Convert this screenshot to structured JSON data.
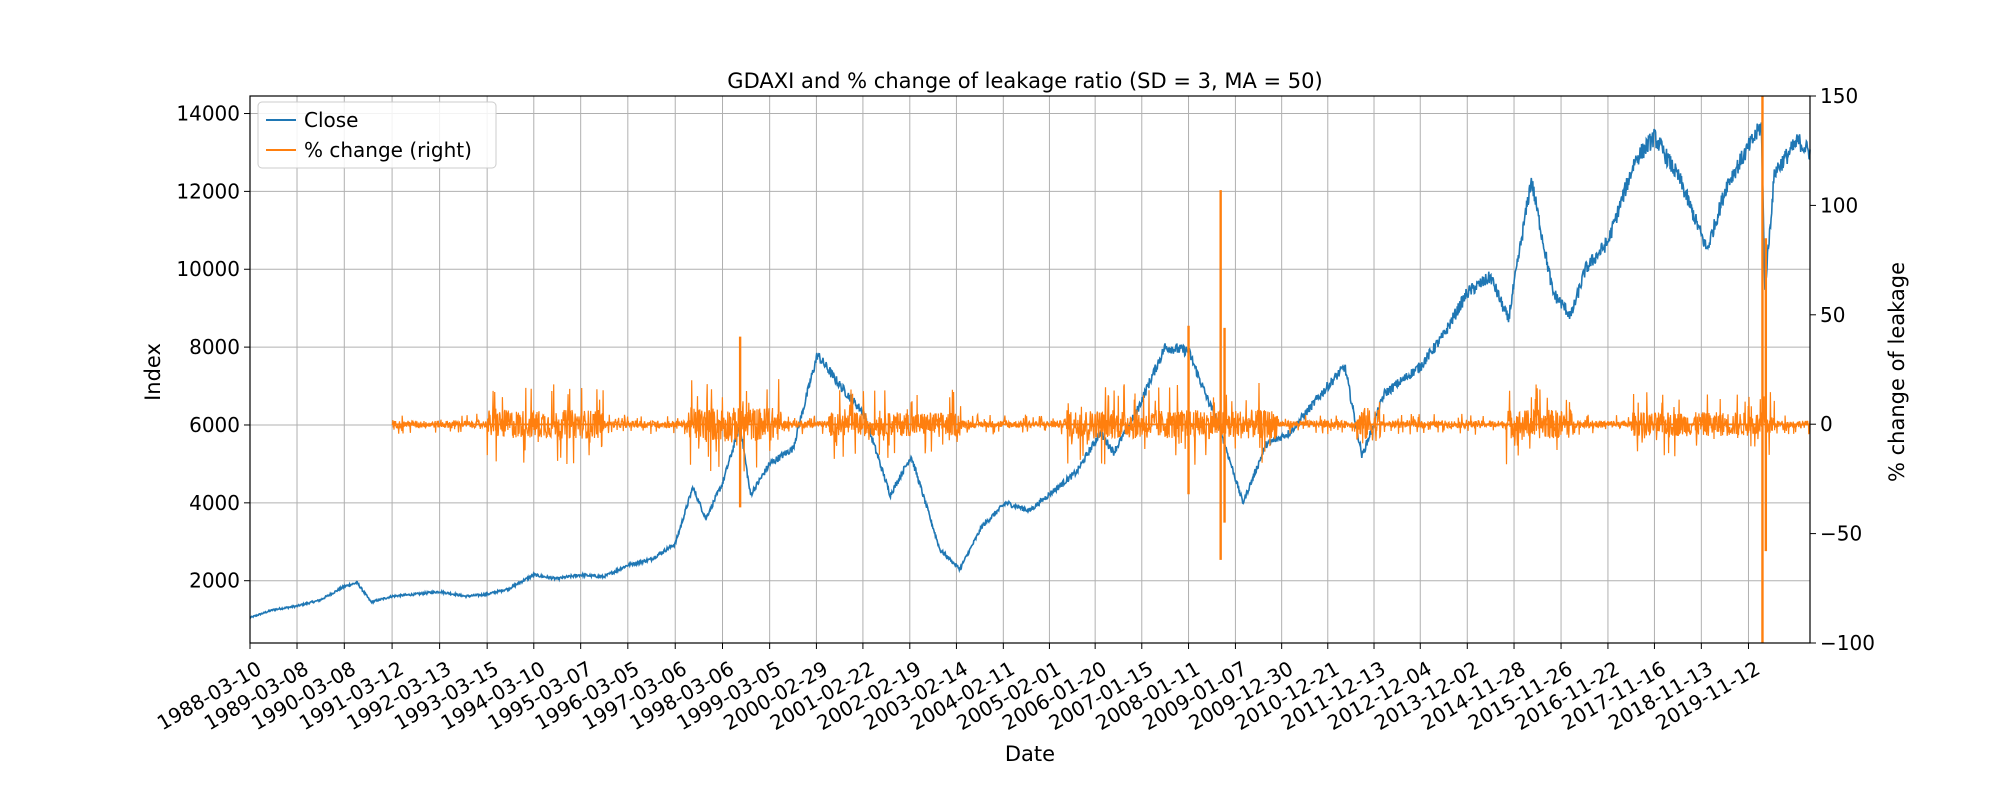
{
  "chart_data": {
    "type": "line",
    "title": "GDAXI and % change of leakage ratio (SD = 3, MA = 50)",
    "xlabel": "Date",
    "ylabel": "Index",
    "ylabel_right": "% change of leakage",
    "grid": true,
    "legend_position": "top-left",
    "x_tick_labels": [
      "1988-03-10",
      "1989-03-08",
      "1990-03-08",
      "1991-03-12",
      "1992-03-13",
      "1993-03-15",
      "1994-03-10",
      "1995-03-07",
      "1996-03-05",
      "1997-03-06",
      "1998-03-06",
      "1999-03-05",
      "2000-02-29",
      "2001-02-22",
      "2002-02-19",
      "2003-02-14",
      "2004-02-11",
      "2005-02-01",
      "2006-01-20",
      "2007-01-15",
      "2008-01-11",
      "2009-01-07",
      "2009-12-30",
      "2010-12-21",
      "2011-12-13",
      "2012-12-04",
      "2013-12-02",
      "2014-11-28",
      "2015-11-26",
      "2016-11-22",
      "2017-11-16",
      "2018-11-13",
      "2019-11-12"
    ],
    "x_range": [
      "1988-03-10",
      "2021-03-01"
    ],
    "y_left": {
      "range": [
        400,
        14450
      ],
      "ticks": [
        2000,
        4000,
        6000,
        8000,
        10000,
        12000,
        14000
      ]
    },
    "y_right": {
      "range": [
        -100,
        150
      ],
      "ticks": [
        -100,
        -50,
        0,
        50,
        100,
        150
      ],
      "tick_labels": [
        "−100",
        "−50",
        "0",
        "50",
        "100",
        "150"
      ]
    },
    "series": [
      {
        "name": "Close",
        "axis": "left",
        "color": "#1f77b4",
        "x": [
          "1988-03-10",
          "1988-09-01",
          "1989-03-08",
          "1989-09-01",
          "1990-03-08",
          "1990-06-15",
          "1990-10-01",
          "1991-03-12",
          "1991-09-01",
          "1992-03-13",
          "1992-10-01",
          "1993-03-15",
          "1993-09-01",
          "1994-03-10",
          "1994-09-01",
          "1995-03-07",
          "1995-09-01",
          "1996-03-05",
          "1996-09-01",
          "1997-03-06",
          "1997-07-20",
          "1997-10-28",
          "1998-03-06",
          "1998-07-20",
          "1998-10-08",
          "1999-03-05",
          "1999-09-01",
          "2000-03-07",
          "2000-09-01",
          "2001-03-01",
          "2001-09-21",
          "2002-03-01",
          "2002-10-09",
          "2003-03-12",
          "2003-09-01",
          "2004-03-01",
          "2004-09-01",
          "2005-03-01",
          "2005-09-01",
          "2006-03-01",
          "2006-06-13",
          "2006-12-01",
          "2007-07-13",
          "2008-01-11",
          "2008-06-01",
          "2008-09-01",
          "2009-03-06",
          "2009-09-01",
          "2010-03-01",
          "2010-12-21",
          "2011-05-01",
          "2011-09-12",
          "2012-03-01",
          "2012-12-04",
          "2013-06-01",
          "2013-12-02",
          "2014-06-01",
          "2014-10-15",
          "2015-04-10",
          "2015-09-24",
          "2016-02-11",
          "2016-06-01",
          "2016-11-22",
          "2017-06-19",
          "2017-11-16",
          "2018-06-01",
          "2018-12-27",
          "2019-06-01",
          "2020-01-17",
          "2020-02-19",
          "2020-03-18",
          "2020-06-01",
          "2020-12-01",
          "2021-03-01"
        ],
        "values": [
          1050,
          1250,
          1350,
          1500,
          1850,
          1950,
          1450,
          1600,
          1650,
          1720,
          1600,
          1650,
          1800,
          2150,
          2050,
          2150,
          2100,
          2400,
          2550,
          2950,
          4400,
          3600,
          4500,
          6000,
          4200,
          5000,
          5400,
          7800,
          7000,
          6300,
          4200,
          5200,
          2800,
          2300,
          3400,
          4000,
          3800,
          4300,
          4800,
          5800,
          5300,
          6300,
          8000,
          7900,
          6700,
          6000,
          4000,
          5500,
          5800,
          7000,
          7500,
          5200,
          6800,
          7500,
          8300,
          9400,
          9800,
          8700,
          12300,
          9400,
          8800,
          10000,
          10700,
          12800,
          13400,
          12300,
          10500,
          12200,
          13500,
          13700,
          9500,
          12500,
          13300,
          13000
        ]
      },
      {
        "name": "% change (right)",
        "axis": "right",
        "color": "#ff7f0e",
        "spikes": [
          {
            "x": "1998-07-20",
            "low": -38,
            "high": 40
          },
          {
            "x": "2008-01-11",
            "low": -32,
            "high": 45
          },
          {
            "x": "2008-09-15",
            "low": -62,
            "high": 107
          },
          {
            "x": "2008-10-15",
            "low": -45,
            "high": 44
          },
          {
            "x": "2020-02-28",
            "low": -100,
            "high": 150
          },
          {
            "x": "2020-03-25",
            "low": -58,
            "high": 85
          }
        ]
      }
    ]
  }
}
